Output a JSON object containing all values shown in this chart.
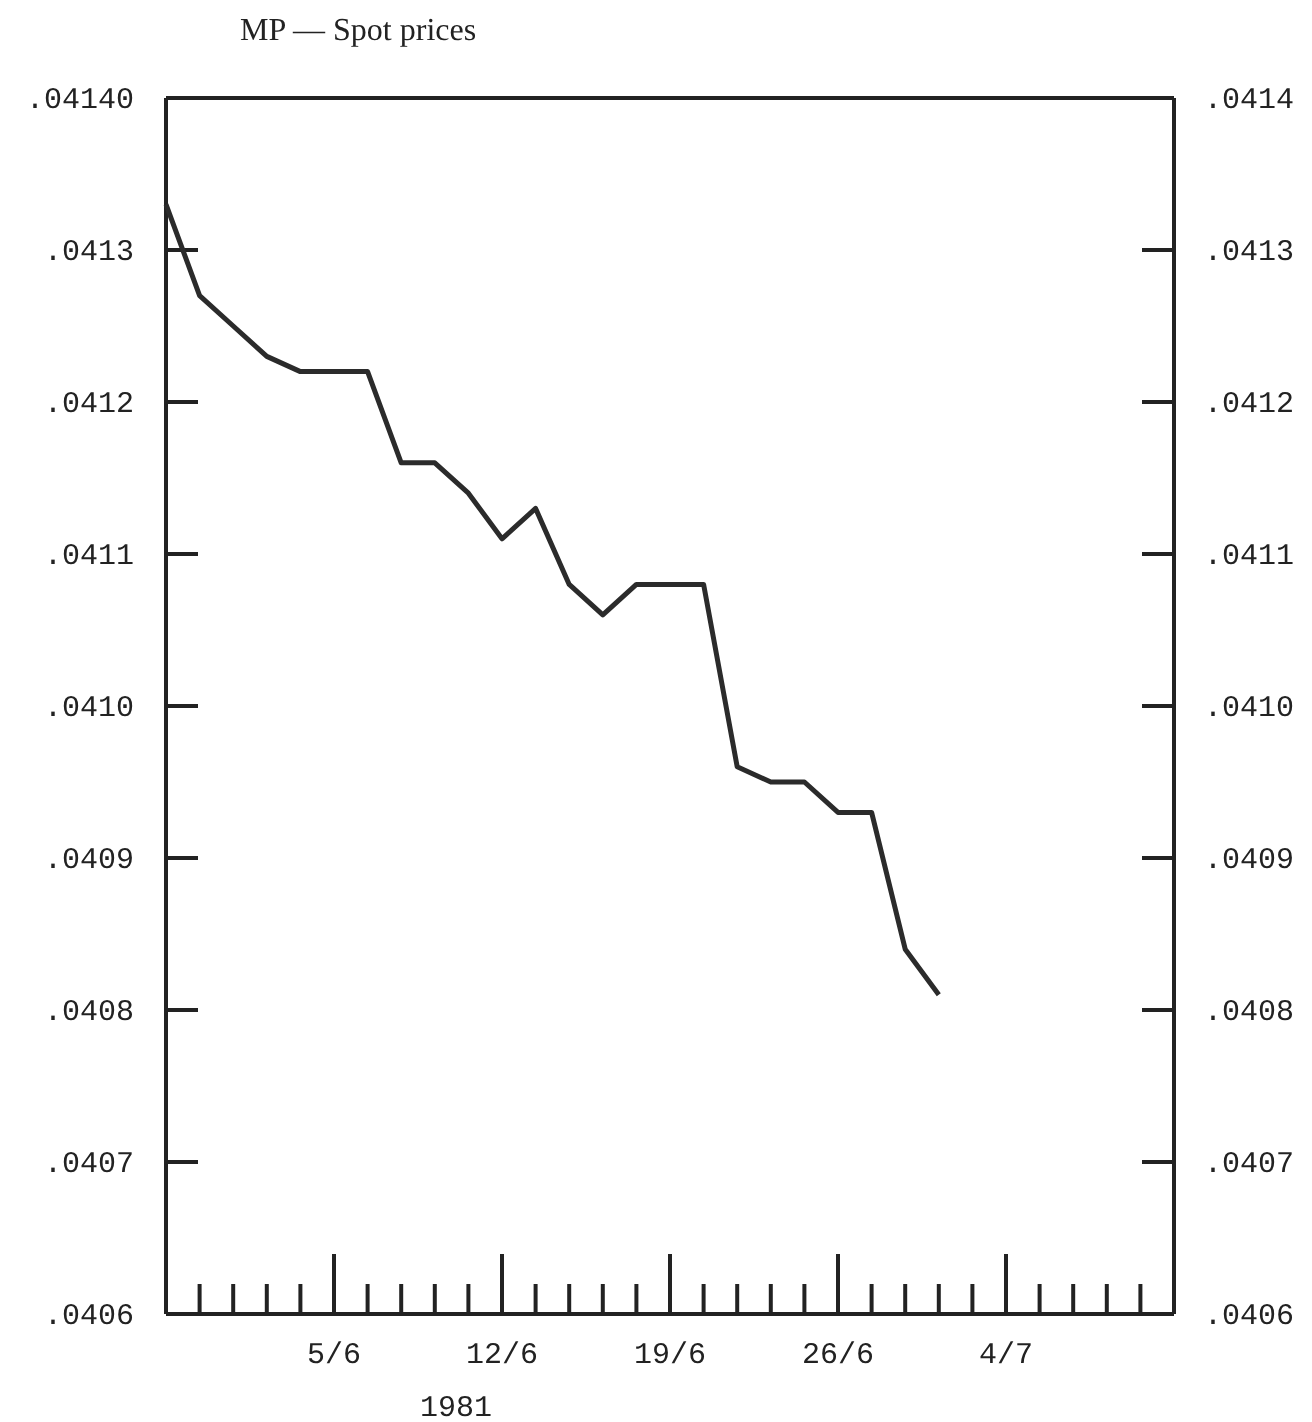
{
  "chart_data": {
    "type": "line",
    "title": "MP — Spot prices",
    "xlabel": "1981",
    "categories": [
      null,
      null,
      null,
      null,
      null,
      "5/6",
      null,
      null,
      null,
      null,
      "12/6",
      null,
      null,
      null,
      null,
      "19/6",
      null,
      null,
      null,
      null,
      "26/6",
      null,
      null,
      null,
      null,
      "4/7",
      null,
      null,
      null,
      null,
      null
    ],
    "series": [
      {
        "color": "#2b2b2b",
        "values": [
          0.04133,
          0.04127,
          0.04125,
          0.04123,
          0.04122,
          0.04122,
          0.04122,
          0.04116,
          0.04116,
          0.04114,
          0.04111,
          0.04113,
          0.04108,
          0.04106,
          0.04108,
          0.04108,
          0.04108,
          0.04096,
          0.04095,
          0.04095,
          0.04093,
          0.04093,
          0.04084,
          0.04081,
          null,
          null,
          null,
          null,
          null,
          null,
          null
        ]
      }
    ],
    "ylim": [
      0.0406,
      0.0414
    ],
    "yticks": [
      {
        "value": 0.0406,
        "label": ".0406"
      },
      {
        "value": 0.0407,
        "label": ".0407"
      },
      {
        "value": 0.0408,
        "label": ".0408"
      },
      {
        "value": 0.0409,
        "label": ".0409"
      },
      {
        "value": 0.041,
        "label": ".0410"
      },
      {
        "value": 0.0411,
        "label": ".0411"
      },
      {
        "value": 0.0412,
        "label": ".0412"
      },
      {
        "value": 0.0413,
        "label": ".0413"
      },
      {
        "value": 0.0414,
        "label": ".04140"
      }
    ],
    "y2lim": [
      0.0406,
      0.0414
    ],
    "y2ticks": [
      {
        "value": 0.0406,
        "label": ".0406"
      },
      {
        "value": 0.0407,
        "label": ".0407"
      },
      {
        "value": 0.0408,
        "label": ".0408"
      },
      {
        "value": 0.0409,
        "label": ".0409"
      },
      {
        "value": 0.041,
        "label": ".0410"
      },
      {
        "value": 0.0411,
        "label": ".0411"
      },
      {
        "value": 0.0412,
        "label": ".0412"
      },
      {
        "value": 0.0413,
        "label": ".0413"
      },
      {
        "value": 0.0414,
        "label": ".0414"
      }
    ],
    "grid": false,
    "marker": "none",
    "line_style": "solid"
  }
}
